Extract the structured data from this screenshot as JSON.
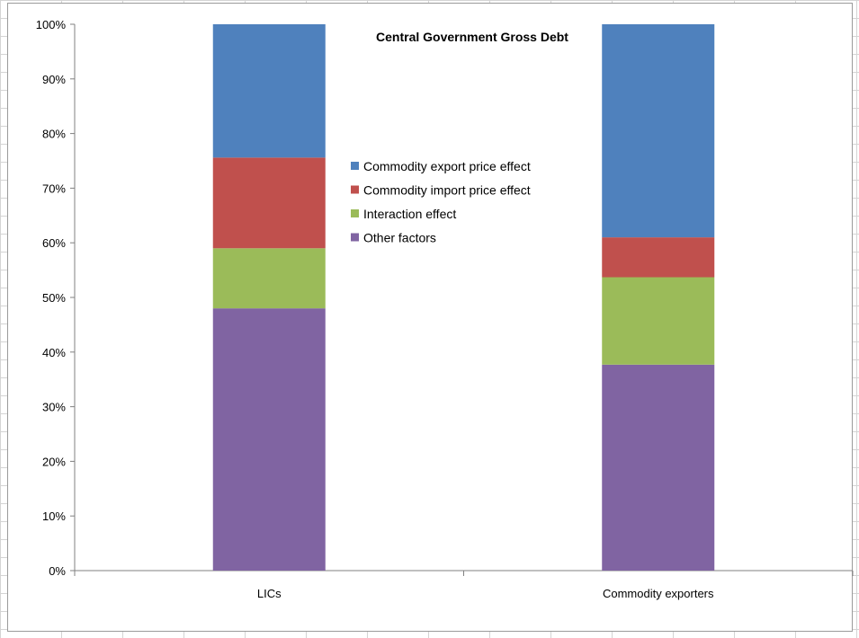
{
  "chart_data": {
    "type": "bar",
    "stacked": true,
    "title": "Central Government Gross Debt",
    "xlabel": "",
    "ylabel": "",
    "ylim": [
      0,
      100
    ],
    "y_ticks": [
      "0%",
      "10%",
      "20%",
      "30%",
      "40%",
      "50%",
      "60%",
      "70%",
      "80%",
      "90%",
      "100%"
    ],
    "categories": [
      "LICs",
      "Commodity exporters"
    ],
    "series": [
      {
        "name": "Other factors",
        "color": "#8064a2",
        "values": [
          48,
          37.7
        ]
      },
      {
        "name": "Interaction effect",
        "color": "#9bbb59",
        "values": [
          11,
          16
        ]
      },
      {
        "name": "Commodity import price effect",
        "color": "#c0504d",
        "values": [
          16.6,
          7.3
        ]
      },
      {
        "name": "Commodity export price effect",
        "color": "#4f81bd",
        "values": [
          24.4,
          39
        ]
      }
    ],
    "legend": {
      "position": "center",
      "order": [
        "Commodity export price effect",
        "Commodity import price effect",
        "Interaction effect",
        "Other factors"
      ]
    },
    "grid": false
  }
}
